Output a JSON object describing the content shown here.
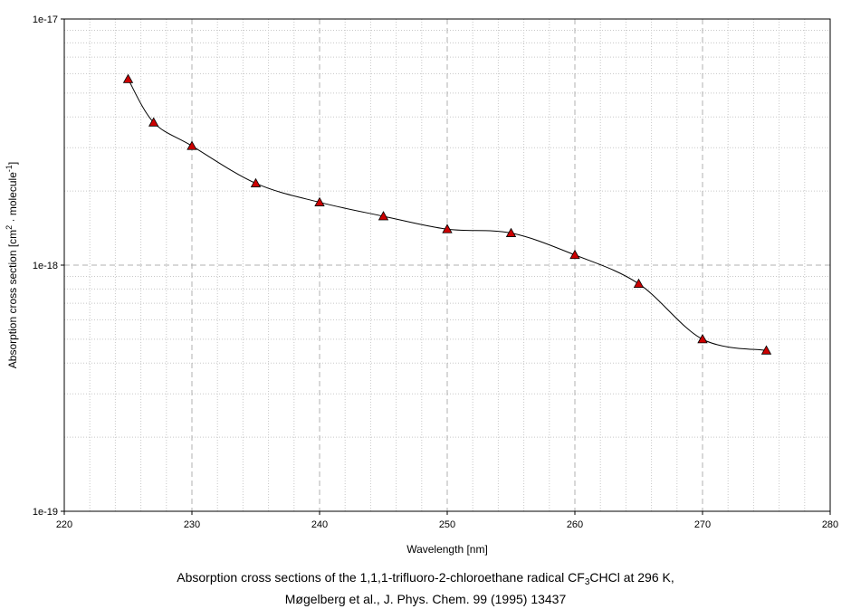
{
  "chart_data": {
    "type": "line",
    "x": [
      225,
      227,
      230,
      235,
      240,
      245,
      250,
      255,
      260,
      265,
      270,
      275
    ],
    "y": [
      5.7e-18,
      3.8e-18,
      3.05e-18,
      2.15e-18,
      1.8e-18,
      1.58e-18,
      1.4e-18,
      1.35e-18,
      1.1e-18,
      8.4e-19,
      5e-19,
      4.5e-19
    ],
    "xlim": [
      220,
      280
    ],
    "ylim": [
      1e-19,
      1e-17
    ],
    "yscale": "log",
    "xticks": [
      220,
      230,
      240,
      250,
      260,
      270,
      280
    ],
    "xtick_labels": [
      "220",
      "230",
      "240",
      "250",
      "260",
      "270",
      "280"
    ],
    "xminor_ticks": [
      222,
      224,
      226,
      228,
      232,
      234,
      236,
      238,
      242,
      244,
      246,
      248,
      252,
      254,
      256,
      258,
      262,
      264,
      266,
      268,
      272,
      274,
      276,
      278
    ],
    "yticks": [
      1e-19,
      1e-18,
      1e-17
    ],
    "ytick_labels": [
      "1e-19",
      "1e-18",
      "1e-17"
    ],
    "xlabel": "Wavelength [nm]",
    "ylabel": {
      "part1": "Absorption cross section [cm",
      "sup1": "2",
      "part2": " · molecule",
      "sup2": "-1",
      "part3": "]"
    },
    "grid": true,
    "marker": "triangle",
    "line_color": "#000000",
    "marker_color": "#cc0000"
  },
  "caption": {
    "line1_part1": "Absorption cross sections of the 1,1,1-trifluoro-2-chloroethane radical CF",
    "line1_sub": "3",
    "line1_part2": "CHCl at 296 K,",
    "line2": "Møgelberg et al., J. Phys. Chem. 99 (1995) 13437"
  }
}
